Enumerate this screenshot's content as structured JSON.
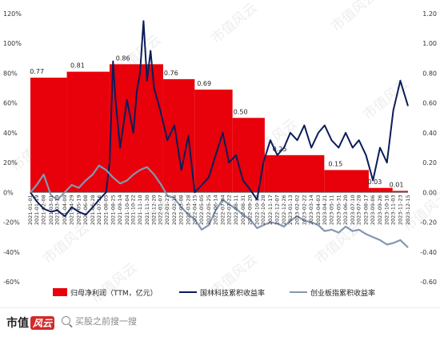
{
  "chart_data": {
    "type": "bar+line",
    "left_axis": {
      "ticks": [
        "120%",
        "100%",
        "80%",
        "60%",
        "40%",
        "20%",
        "0%",
        "-20%",
        "-40%",
        "-60%"
      ],
      "ylim": [
        -0.6,
        1.2
      ]
    },
    "right_axis": {
      "ticks": [
        "1.20",
        "1.00",
        "0.80",
        "0.60",
        "0.40",
        "0.20",
        "0.00",
        "-0.20",
        "-0.40",
        "-0.60"
      ],
      "ylim": [
        -0.6,
        1.2
      ]
    },
    "x_range": [
      "2021-01-01",
      "2023-12-15"
    ],
    "x_tick_labels": [
      "2021-01-01",
      "2021-01-19",
      "2021-02-08",
      "2021-03-01",
      "2021-03-19",
      "2021-04-09",
      "2021-04-29",
      "2021-05-19",
      "2021-06-08",
      "2021-06-28",
      "2021-07-16",
      "2021-08-05",
      "2021-08-25",
      "2021-09-14",
      "2021-10-04",
      "2021-10-22",
      "2021-11-10",
      "2021-11-30",
      "2021-12-20",
      "2022-01-07",
      "2022-01-27",
      "2022-02-16",
      "2022-03-08",
      "2022-03-28",
      "2022-04-15",
      "2022-05-05",
      "2022-05-25",
      "2022-06-14",
      "2022-07-04",
      "2022-07-22",
      "2022-08-11",
      "2022-08-31",
      "2022-09-20",
      "2022-10-10",
      "2022-10-28",
      "2022-11-17",
      "2022-12-07",
      "2022-12-26",
      "2023-01-13",
      "2023-02-02",
      "2023-02-22",
      "2023-03-14",
      "2023-04-03",
      "2023-04-21",
      "2023-05-11",
      "2023-05-31",
      "2023-06-20",
      "2023-07-10",
      "2023-07-28",
      "2023-08-17",
      "2023-09-06",
      "2023-09-26",
      "2023-10-16",
      "2023-11-03",
      "2023-11-23",
      "2023-12-15"
    ],
    "series": [
      {
        "name": "归母净利润（TTM，亿元）",
        "type": "step-bar",
        "color": "#e8000b",
        "axis": "right",
        "periods": [
          {
            "start": "2021-01-01",
            "end": "2021-04-15",
            "value": 0.77
          },
          {
            "start": "2021-04-15",
            "end": "2021-08-15",
            "value": 0.81
          },
          {
            "start": "2021-08-15",
            "end": "2022-01-15",
            "value": 0.86
          },
          {
            "start": "2022-01-15",
            "end": "2022-04-15",
            "value": 0.76
          },
          {
            "start": "2022-04-15",
            "end": "2022-08-01",
            "value": 0.69
          },
          {
            "start": "2022-08-01",
            "end": "2022-11-01",
            "value": 0.5
          },
          {
            "start": "2022-11-01",
            "end": "2023-04-20",
            "value": 0.25
          },
          {
            "start": "2023-04-20",
            "end": "2023-08-25",
            "value": 0.15
          },
          {
            "start": "2023-08-25",
            "end": "2023-11-01",
            "value": 0.03
          },
          {
            "start": "2023-11-01",
            "end": "2023-12-15",
            "value": 0.01
          }
        ],
        "labels": [
          "0.77",
          "0.81",
          "0.86",
          "0.76",
          "0.69",
          "0.50",
          "0.25",
          "0.15",
          "0.03",
          "0.01"
        ]
      },
      {
        "name": "国林科技累积收益率",
        "type": "line",
        "color": "#0b1c5a",
        "axis": "left",
        "points": [
          [
            "2021-01-01",
            0.0
          ],
          [
            "2021-01-19",
            -0.06
          ],
          [
            "2021-02-08",
            -0.11
          ],
          [
            "2021-03-01",
            -0.13
          ],
          [
            "2021-03-19",
            -0.12
          ],
          [
            "2021-04-09",
            -0.16
          ],
          [
            "2021-04-29",
            -0.1
          ],
          [
            "2021-05-19",
            -0.13
          ],
          [
            "2021-06-08",
            -0.15
          ],
          [
            "2021-06-28",
            -0.1
          ],
          [
            "2021-07-16",
            -0.05
          ],
          [
            "2021-08-05",
            0.0
          ],
          [
            "2021-08-15",
            0.2
          ],
          [
            "2021-08-25",
            0.88
          ],
          [
            "2021-09-01",
            0.62
          ],
          [
            "2021-09-14",
            0.3
          ],
          [
            "2021-10-04",
            0.62
          ],
          [
            "2021-10-22",
            0.4
          ],
          [
            "2021-11-01",
            0.68
          ],
          [
            "2021-11-10",
            0.8
          ],
          [
            "2021-11-20",
            1.15
          ],
          [
            "2021-11-30",
            0.75
          ],
          [
            "2021-12-10",
            0.95
          ],
          [
            "2021-12-20",
            0.7
          ],
          [
            "2022-01-07",
            0.55
          ],
          [
            "2022-01-27",
            0.35
          ],
          [
            "2022-02-16",
            0.45
          ],
          [
            "2022-03-08",
            0.15
          ],
          [
            "2022-03-28",
            0.38
          ],
          [
            "2022-04-15",
            0.0
          ],
          [
            "2022-05-05",
            0.05
          ],
          [
            "2022-05-25",
            0.1
          ],
          [
            "2022-06-14",
            0.25
          ],
          [
            "2022-07-04",
            0.4
          ],
          [
            "2022-07-22",
            0.2
          ],
          [
            "2022-08-11",
            0.25
          ],
          [
            "2022-08-31",
            0.08
          ],
          [
            "2022-09-20",
            0.02
          ],
          [
            "2022-10-10",
            -0.05
          ],
          [
            "2022-10-28",
            0.2
          ],
          [
            "2022-11-17",
            0.35
          ],
          [
            "2022-12-07",
            0.25
          ],
          [
            "2022-12-26",
            0.3
          ],
          [
            "2023-01-13",
            0.4
          ],
          [
            "2023-02-02",
            0.35
          ],
          [
            "2023-02-22",
            0.45
          ],
          [
            "2023-03-14",
            0.3
          ],
          [
            "2023-04-03",
            0.4
          ],
          [
            "2023-04-21",
            0.45
          ],
          [
            "2023-05-11",
            0.35
          ],
          [
            "2023-05-31",
            0.3
          ],
          [
            "2023-06-20",
            0.4
          ],
          [
            "2023-07-10",
            0.3
          ],
          [
            "2023-07-28",
            0.35
          ],
          [
            "2023-08-17",
            0.25
          ],
          [
            "2023-09-06",
            0.08
          ],
          [
            "2023-09-26",
            0.3
          ],
          [
            "2023-10-16",
            0.2
          ],
          [
            "2023-11-03",
            0.55
          ],
          [
            "2023-11-23",
            0.75
          ],
          [
            "2023-12-15",
            0.58
          ]
        ]
      },
      {
        "name": "创业板指累积收益率",
        "type": "line",
        "color": "#8497b0",
        "axis": "left",
        "points": [
          [
            "2021-01-01",
            0.0
          ],
          [
            "2021-01-19",
            0.05
          ],
          [
            "2021-02-08",
            0.12
          ],
          [
            "2021-03-01",
            -0.02
          ],
          [
            "2021-03-19",
            -0.05
          ],
          [
            "2021-04-09",
            0.0
          ],
          [
            "2021-04-29",
            0.05
          ],
          [
            "2021-05-19",
            0.03
          ],
          [
            "2021-06-08",
            0.08
          ],
          [
            "2021-06-28",
            0.12
          ],
          [
            "2021-07-16",
            0.18
          ],
          [
            "2021-08-05",
            0.15
          ],
          [
            "2021-08-25",
            0.1
          ],
          [
            "2021-09-14",
            0.06
          ],
          [
            "2021-10-04",
            0.08
          ],
          [
            "2021-10-22",
            0.12
          ],
          [
            "2021-11-10",
            0.15
          ],
          [
            "2021-11-30",
            0.17
          ],
          [
            "2021-12-20",
            0.12
          ],
          [
            "2022-01-07",
            0.06
          ],
          [
            "2022-01-27",
            -0.02
          ],
          [
            "2022-02-16",
            -0.04
          ],
          [
            "2022-03-08",
            -0.1
          ],
          [
            "2022-03-28",
            -0.15
          ],
          [
            "2022-04-15",
            -0.18
          ],
          [
            "2022-05-05",
            -0.25
          ],
          [
            "2022-05-25",
            -0.22
          ],
          [
            "2022-06-14",
            -0.12
          ],
          [
            "2022-07-04",
            -0.05
          ],
          [
            "2022-07-22",
            -0.08
          ],
          [
            "2022-08-11",
            -0.11
          ],
          [
            "2022-08-31",
            -0.15
          ],
          [
            "2022-09-20",
            -0.18
          ],
          [
            "2022-10-10",
            -0.24
          ],
          [
            "2022-10-28",
            -0.22
          ],
          [
            "2022-11-17",
            -0.2
          ],
          [
            "2022-12-07",
            -0.21
          ],
          [
            "2022-12-26",
            -0.23
          ],
          [
            "2023-01-13",
            -0.19
          ],
          [
            "2023-02-02",
            -0.16
          ],
          [
            "2023-02-22",
            -0.19
          ],
          [
            "2023-03-14",
            -0.2
          ],
          [
            "2023-04-03",
            -0.22
          ],
          [
            "2023-04-21",
            -0.26
          ],
          [
            "2023-05-11",
            -0.25
          ],
          [
            "2023-05-31",
            -0.27
          ],
          [
            "2023-06-20",
            -0.23
          ],
          [
            "2023-07-10",
            -0.26
          ],
          [
            "2023-07-28",
            -0.25
          ],
          [
            "2023-08-17",
            -0.28
          ],
          [
            "2023-09-06",
            -0.3
          ],
          [
            "2023-09-26",
            -0.32
          ],
          [
            "2023-10-16",
            -0.35
          ],
          [
            "2023-11-03",
            -0.34
          ],
          [
            "2023-11-23",
            -0.32
          ],
          [
            "2023-12-15",
            -0.37
          ]
        ]
      }
    ],
    "legend_position": "bottom",
    "grid": false
  },
  "footer": {
    "brand": "市值",
    "brand_stylized": "风云",
    "search_placeholder": "买股之前搜一搜"
  },
  "watermarks": [
    "市值风云",
    "市值风云",
    "市值风云",
    "市值风云",
    "市值风云",
    "市值风云",
    "市值风云",
    "市值风云",
    "市值风云",
    "市值风云",
    "市值风云",
    "市值风云"
  ]
}
